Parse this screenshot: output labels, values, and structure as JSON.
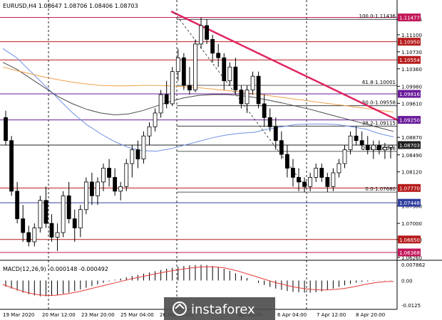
{
  "header": {
    "title": "EURUSD,H4  1.08647 1.08706 1.08406 1.08703"
  },
  "watermark": {
    "text": "instaforex"
  },
  "chart_data": {
    "type": "candlestick",
    "symbol": "EURUSD",
    "timeframe": "H4",
    "ohlc": [
      1.08647,
      1.08706,
      1.08406,
      1.08703
    ],
    "ylim": [
      1.0626,
      1.1164
    ],
    "price_ticks": [
      "1.11436",
      "1.11100",
      "1.10730",
      "1.10360",
      "1.09980",
      "1.09610",
      "1.08870",
      "1.08490",
      "1.08120",
      "1.07380",
      "1.07000",
      "1.06650",
      "1.06260"
    ],
    "highlight_levels": [
      {
        "label": "1.11477",
        "value": 1.11477,
        "color": "#c2185b"
      },
      {
        "label": "1.10950",
        "value": 1.1095,
        "color": "#b71c1c"
      },
      {
        "label": "1.10554",
        "value": 1.10554,
        "color": "#b71c1c"
      },
      {
        "label": "1.09816",
        "value": 1.09816,
        "color": "#6a1b9a"
      },
      {
        "label": "1.09250",
        "value": 1.0925,
        "color": "#6a1b9a"
      },
      {
        "label": "1.08703",
        "value": 1.08703,
        "color": "#1f1f1f"
      },
      {
        "label": "1.07770",
        "value": 1.0777,
        "color": "#b71c1c"
      },
      {
        "label": "1.07448",
        "value": 1.07448,
        "color": "#303f9f"
      },
      {
        "label": "1.06650",
        "value": 1.0665,
        "color": "#b71c1c"
      },
      {
        "label": "1.06368",
        "value": 1.06368,
        "color": "#c2185b"
      }
    ],
    "fib_levels": [
      {
        "label": "100.0-1.11436",
        "value": 1.11436
      },
      {
        "label": "61.8-1.10001",
        "value": 1.10001
      },
      {
        "label": "50.0-1.09558",
        "value": 1.09558
      },
      {
        "label": "38.2-1.09115",
        "value": 1.09115
      },
      {
        "label": "23.6-1.08566",
        "value": 1.08566
      },
      {
        "label": "0.0-1.07680",
        "value": 1.0768
      }
    ],
    "time_labels": [
      "19 Mar 2020",
      "20 Mar 12:00",
      "23 Mar 20:00",
      "25 Mar 04:00",
      "26 Mar 12:00",
      "",
      "Apr 20:00",
      "6 Apr 04:00",
      "7 Apr 12:00",
      "8 Apr 20:00"
    ],
    "candles": [
      [
        1.093,
        1.0945,
        1.087,
        1.088
      ],
      [
        1.088,
        1.089,
        1.076,
        1.077
      ],
      [
        1.077,
        1.079,
        1.07,
        1.071
      ],
      [
        1.071,
        1.074,
        1.066,
        1.068
      ],
      [
        1.068,
        1.0695,
        1.065,
        1.066
      ],
      [
        1.066,
        1.07,
        1.065,
        1.069
      ],
      [
        1.069,
        1.076,
        1.068,
        1.075
      ],
      [
        1.075,
        1.078,
        1.069,
        1.07
      ],
      [
        1.07,
        1.072,
        1.066,
        1.067
      ],
      [
        1.067,
        1.07,
        1.064,
        1.068
      ],
      [
        1.068,
        1.077,
        1.067,
        1.076
      ],
      [
        1.076,
        1.079,
        1.07,
        1.071
      ],
      [
        1.071,
        1.073,
        1.066,
        1.069
      ],
      [
        1.069,
        1.074,
        1.067,
        1.073
      ],
      [
        1.073,
        1.08,
        1.072,
        1.079
      ],
      [
        1.079,
        1.081,
        1.074,
        1.076
      ],
      [
        1.076,
        1.08,
        1.074,
        1.079
      ],
      [
        1.079,
        1.083,
        1.077,
        1.082
      ],
      [
        1.082,
        1.084,
        1.078,
        1.08
      ],
      [
        1.08,
        1.082,
        1.076,
        1.077
      ],
      [
        1.077,
        1.079,
        1.075,
        1.078
      ],
      [
        1.078,
        1.084,
        1.077,
        1.083
      ],
      [
        1.083,
        1.087,
        1.08,
        1.086
      ],
      [
        1.086,
        1.088,
        1.082,
        1.084
      ],
      [
        1.084,
        1.09,
        1.083,
        1.089
      ],
      [
        1.089,
        1.092,
        1.087,
        1.091
      ],
      [
        1.091,
        1.095,
        1.09,
        1.094
      ],
      [
        1.094,
        1.099,
        1.093,
        1.098
      ],
      [
        1.098,
        1.101,
        1.095,
        1.096
      ],
      [
        1.096,
        1.104,
        1.0955,
        1.103
      ],
      [
        1.103,
        1.108,
        1.101,
        1.106
      ],
      [
        1.106,
        1.107,
        1.099,
        1.1
      ],
      [
        1.1,
        1.104,
        1.098,
        1.099
      ],
      [
        1.099,
        1.11,
        1.0985,
        1.109
      ],
      [
        1.109,
        1.1148,
        1.108,
        1.113
      ],
      [
        1.113,
        1.1144,
        1.109,
        1.11
      ],
      [
        1.11,
        1.111,
        1.105,
        1.107
      ],
      [
        1.107,
        1.109,
        1.104,
        1.106
      ],
      [
        1.106,
        1.107,
        1.099,
        1.101
      ],
      [
        1.101,
        1.105,
        1.1,
        1.104
      ],
      [
        1.104,
        1.106,
        1.098,
        1.099
      ],
      [
        1.099,
        1.1,
        1.095,
        1.096
      ],
      [
        1.096,
        1.1,
        1.094,
        1.099
      ],
      [
        1.099,
        1.103,
        1.098,
        1.102
      ],
      [
        1.102,
        1.103,
        1.095,
        1.096
      ],
      [
        1.096,
        1.098,
        1.091,
        1.093
      ],
      [
        1.093,
        1.095,
        1.09,
        1.091
      ],
      [
        1.091,
        1.093,
        1.086,
        1.088
      ],
      [
        1.088,
        1.09,
        1.084,
        1.085
      ],
      [
        1.085,
        1.087,
        1.08,
        1.082
      ],
      [
        1.082,
        1.084,
        1.078,
        1.08
      ],
      [
        1.08,
        1.082,
        1.077,
        1.079
      ],
      [
        1.079,
        1.08,
        1.0768,
        1.078
      ],
      [
        1.078,
        1.081,
        1.077,
        1.08
      ],
      [
        1.08,
        1.083,
        1.079,
        1.082
      ],
      [
        1.082,
        1.083,
        1.079,
        1.08
      ],
      [
        1.08,
        1.081,
        1.0768,
        1.078
      ],
      [
        1.078,
        1.082,
        1.077,
        1.081
      ],
      [
        1.081,
        1.084,
        1.08,
        1.083
      ],
      [
        1.083,
        1.087,
        1.082,
        1.086
      ],
      [
        1.086,
        1.09,
        1.085,
        1.089
      ],
      [
        1.089,
        1.0912,
        1.087,
        1.088
      ],
      [
        1.088,
        1.09,
        1.086,
        1.087
      ],
      [
        1.087,
        1.089,
        1.085,
        1.086
      ],
      [
        1.086,
        1.088,
        1.084,
        1.087
      ],
      [
        1.087,
        1.088,
        1.085,
        1.086
      ],
      [
        1.086,
        1.0875,
        1.084,
        1.0865
      ],
      [
        1.0865,
        1.0871,
        1.0841,
        1.087
      ]
    ],
    "moving_averages": [
      {
        "name": "",
        "color": "#6f8fe6",
        "values": [
          1.108,
          1.106,
          1.103,
          1.1,
          1.097,
          1.094,
          1.0915,
          1.0895,
          1.0878,
          1.0865,
          1.0858,
          1.0857,
          1.0862,
          1.087,
          1.0878,
          1.0886,
          1.0892,
          1.0896,
          1.0898,
          1.0905,
          1.091,
          1.0915,
          1.0916,
          1.0916,
          1.0915,
          1.091,
          1.0905,
          1.0895,
          1.0888
        ]
      },
      {
        "name": "",
        "color": "#4a4a4a",
        "values": [
          1.105,
          1.1035,
          1.1015,
          1.0995,
          1.0975,
          1.096,
          1.0948,
          1.094,
          1.0936,
          1.0938,
          1.0945,
          1.0955,
          1.0965,
          1.0973,
          1.0978,
          1.098,
          1.098,
          1.0978,
          1.0974,
          1.0968,
          1.0962,
          1.0955,
          1.0948,
          1.094,
          1.0932,
          1.0924,
          1.0916,
          1.0908,
          1.09
        ]
      },
      {
        "name": "",
        "color": "#f0a04b",
        "values": [
          1.104,
          1.1032,
          1.1025,
          1.1018,
          1.1012,
          1.1007,
          1.1003,
          1.1,
          1.0999,
          1.0999,
          1.1,
          1.1,
          1.0999,
          1.0997,
          1.0995,
          1.0992,
          1.0989,
          1.0986,
          1.0982,
          1.0978,
          1.0974,
          1.097,
          1.0966,
          1.0962,
          1.0958,
          1.0954,
          1.095,
          1.0946,
          1.0942
        ]
      }
    ],
    "macd": {
      "label": "MACD(12,26,9) -0.000148 -0.000492",
      "ticks": [
        "0.007862",
        "0.00",
        "-0.0125"
      ],
      "ylim": [
        -0.0125,
        0.0079
      ],
      "histogram": [
        -0.003,
        -0.004,
        -0.005,
        -0.006,
        -0.0068,
        -0.0074,
        -0.0078,
        -0.0078,
        -0.0076,
        -0.0072,
        -0.0066,
        -0.006,
        -0.0052,
        -0.0044,
        -0.0036,
        -0.0028,
        -0.002,
        -0.0012,
        -0.0004,
        0.0004,
        0.001,
        0.0016,
        0.0022,
        0.0028,
        0.0034,
        0.004,
        0.0046,
        0.0052,
        0.0058,
        0.0063,
        0.0068,
        0.0072,
        0.0075,
        0.0077,
        0.0078,
        0.0076,
        0.0072,
        0.0066,
        0.0058,
        0.0048,
        0.0036,
        0.0024,
        0.0012,
        0.0,
        -0.0012,
        -0.0022,
        -0.0032,
        -0.004,
        -0.0046,
        -0.0052,
        -0.0056,
        -0.0058,
        -0.006,
        -0.006,
        -0.0058,
        -0.0054,
        -0.0048,
        -0.004,
        -0.0032,
        -0.0024,
        -0.0017,
        -0.0011,
        -0.0007,
        -0.0004,
        -0.0002,
        -0.0001,
        -0.00015,
        -0.00015
      ],
      "signal": [
        -0.002,
        -0.003,
        -0.004,
        -0.005,
        -0.0058,
        -0.0065,
        -0.007,
        -0.0073,
        -0.0074,
        -0.0073,
        -0.007,
        -0.0066,
        -0.0061,
        -0.0055,
        -0.0048,
        -0.0041,
        -0.0034,
        -0.0027,
        -0.002,
        -0.0013,
        -0.0006,
        0.0001,
        0.0008,
        0.0014,
        0.002,
        0.0026,
        0.0032,
        0.0038,
        0.0043,
        0.0048,
        0.0053,
        0.0057,
        0.0061,
        0.0064,
        0.0067,
        0.0068,
        0.0068,
        0.0066,
        0.0062,
        0.0056,
        0.0049,
        0.0041,
        0.0032,
        0.0023,
        0.0014,
        0.0005,
        -0.0004,
        -0.0012,
        -0.0019,
        -0.0026,
        -0.0032,
        -0.0037,
        -0.0041,
        -0.0044,
        -0.0046,
        -0.0047,
        -0.0046,
        -0.0044,
        -0.0041,
        -0.0037,
        -0.0032,
        -0.0026,
        -0.002,
        -0.0015,
        -0.001,
        -0.0007,
        -0.0005,
        -0.0005
      ]
    }
  }
}
